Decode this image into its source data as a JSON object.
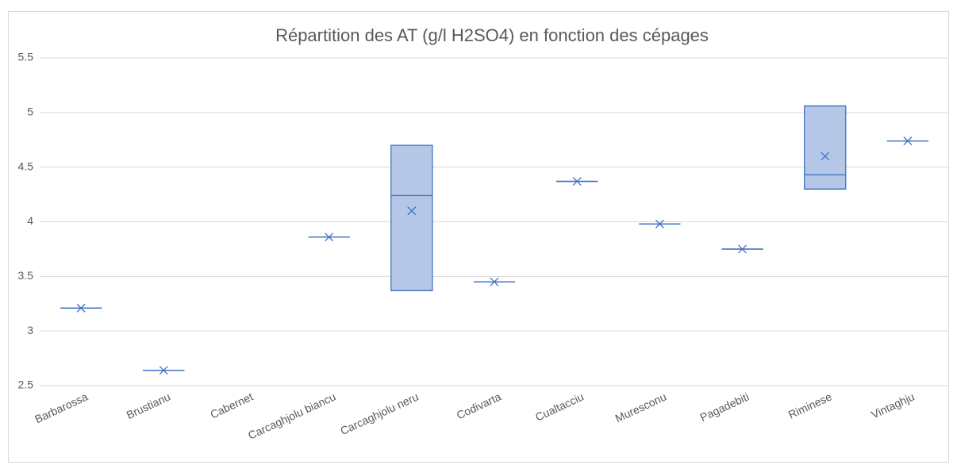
{
  "chart_data": {
    "type": "box",
    "title": "Répartition des AT (g/l H2SO4) en fonction des cépages",
    "categories": [
      "Barbarossa",
      "Brustianu",
      "Cabernet",
      "Carcaghjolu biancu",
      "Carcaghjolu neru",
      "Codivarta",
      "Cualtacciu",
      "Muresconu",
      "Pagadebiti",
      "Riminese",
      "Vintaghju"
    ],
    "min": [
      3.21,
      2.64,
      null,
      3.86,
      3.37,
      3.45,
      4.37,
      3.98,
      3.75,
      4.3,
      4.74
    ],
    "q1": [
      3.21,
      2.64,
      null,
      3.86,
      3.37,
      3.45,
      4.37,
      3.98,
      3.75,
      4.3,
      4.74
    ],
    "median": [
      3.21,
      2.64,
      null,
      3.86,
      4.24,
      3.45,
      4.37,
      3.98,
      3.75,
      4.43,
      4.74
    ],
    "q3": [
      3.21,
      2.64,
      null,
      3.86,
      4.7,
      3.45,
      4.37,
      3.98,
      3.75,
      5.06,
      4.74
    ],
    "max": [
      3.21,
      2.64,
      null,
      3.86,
      4.7,
      3.45,
      4.37,
      3.98,
      3.75,
      5.06,
      4.74
    ],
    "mean": [
      3.21,
      2.64,
      null,
      3.86,
      4.1,
      3.45,
      4.37,
      3.98,
      3.75,
      4.6,
      4.74
    ],
    "color": "#4472c4",
    "fill": "#b4c7e7",
    "ylim": [
      2.5,
      5.5
    ],
    "yticks": [
      2.5,
      3,
      3.5,
      4,
      4.5,
      5,
      5.5
    ],
    "grid": true
  }
}
